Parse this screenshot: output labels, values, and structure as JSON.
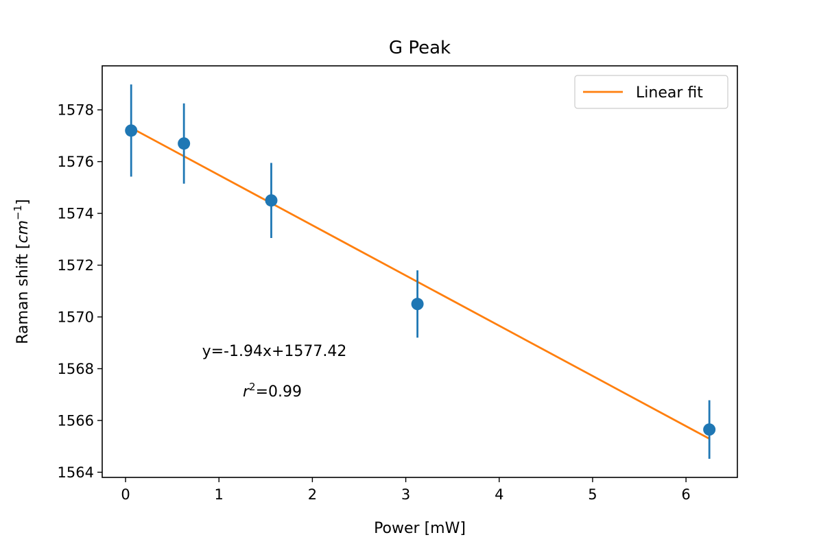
{
  "chart_data": {
    "type": "scatter",
    "title": "G Peak",
    "xlabel": "Power [mW]",
    "ylabel_main": "Raman shift [",
    "ylabel_unit": "cm",
    "ylabel_exp": "−1",
    "ylabel_close": "]",
    "xlim": [
      -0.25,
      6.55
    ],
    "ylim": [
      1563.8,
      1579.7
    ],
    "xticks": [
      0,
      1,
      2,
      3,
      4,
      5,
      6
    ],
    "yticks": [
      1564,
      1566,
      1568,
      1570,
      1572,
      1574,
      1576,
      1578
    ],
    "points": {
      "x": [
        0.06,
        0.625,
        1.56,
        3.125,
        6.25
      ],
      "y": [
        1577.2,
        1576.7,
        1574.5,
        1570.5,
        1565.65
      ],
      "yerr": [
        1.78,
        1.55,
        1.45,
        1.3,
        1.13
      ],
      "color": "#1f77b4"
    },
    "fit": {
      "name": "Linear fit",
      "slope": -1.94,
      "intercept": 1577.42,
      "x_range": [
        0.06,
        6.25
      ],
      "color": "#ff7f0e"
    },
    "annotations": {
      "equation": "y=-1.94x+1577.42",
      "r_symbol": "r",
      "r_exp": "2",
      "r_value": "=0.99"
    },
    "legend_position": "upper right",
    "grid": false
  }
}
